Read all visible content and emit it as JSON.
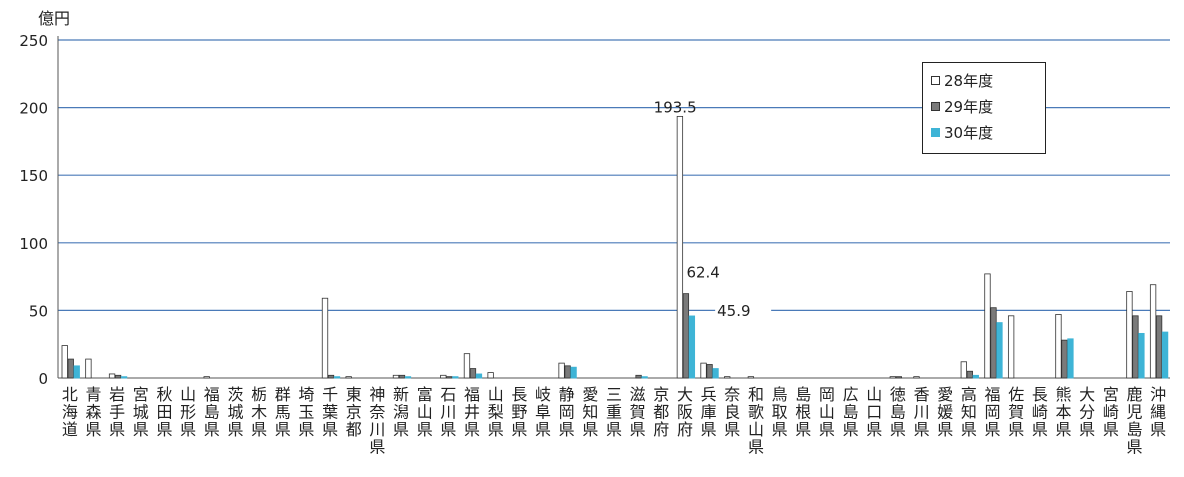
{
  "chart_data": {
    "type": "bar",
    "unit_label": "億円",
    "ylim": [
      0,
      250
    ],
    "yticks": [
      0,
      50,
      100,
      150,
      200,
      250
    ],
    "grid": true,
    "legend_position": "top-right",
    "categories": [
      "北海道",
      "青森県",
      "岩手県",
      "宮城県",
      "秋田県",
      "山形県",
      "福島県",
      "茨城県",
      "栃木県",
      "群馬県",
      "埼玉県",
      "千葉県",
      "東京都",
      "神奈川県",
      "新潟県",
      "富山県",
      "石川県",
      "福井県",
      "山梨県",
      "長野県",
      "岐阜県",
      "静岡県",
      "愛知県",
      "三重県",
      "滋賀県",
      "京都府",
      "大阪府",
      "兵庫県",
      "奈良県",
      "和歌山県",
      "鳥取県",
      "島根県",
      "岡山県",
      "広島県",
      "山口県",
      "徳島県",
      "香川県",
      "愛媛県",
      "高知県",
      "福岡県",
      "佐賀県",
      "長崎県",
      "熊本県",
      "大分県",
      "宮崎県",
      "鹿児島県",
      "沖縄県"
    ],
    "series": [
      {
        "name": "28年度",
        "color": "#ffffff",
        "stroke": "#333333",
        "values": [
          24,
          14,
          3,
          0,
          0,
          0,
          1,
          0,
          0,
          0,
          0,
          59,
          1,
          0,
          2,
          0,
          2,
          18,
          4,
          0,
          0,
          11,
          0,
          0,
          0,
          0,
          193.5,
          11,
          1,
          1,
          0,
          0,
          0,
          0,
          0,
          1,
          1,
          0,
          12,
          77,
          46,
          0,
          47,
          0,
          0,
          64,
          69
        ]
      },
      {
        "name": "29年度",
        "color": "#7a7a7a",
        "stroke": "#333333",
        "values": [
          14,
          0,
          2,
          0,
          0,
          0,
          0,
          0,
          0,
          0,
          0,
          2,
          0,
          0,
          2,
          0,
          1,
          7,
          0,
          0,
          0,
          9,
          0,
          0,
          2,
          0,
          62.4,
          10,
          0,
          0,
          0,
          0,
          0,
          0,
          0,
          1,
          0,
          0,
          5,
          52,
          0,
          0,
          28,
          0,
          0,
          46,
          46
        ]
      },
      {
        "name": "30年度",
        "color": "#3eb4d6",
        "stroke": "#3eb4d6",
        "values": [
          9,
          0,
          1,
          0,
          0,
          0,
          0,
          0,
          0,
          0,
          0,
          1,
          0,
          0,
          1,
          0,
          1,
          3,
          0,
          0,
          0,
          8,
          0,
          0,
          1,
          0,
          45.9,
          7,
          0,
          0,
          0,
          0,
          0,
          0,
          0,
          0,
          0,
          0,
          2,
          41,
          0,
          0,
          29,
          0,
          0,
          33,
          34
        ]
      }
    ],
    "data_labels": [
      {
        "category": "大阪府",
        "series": "28年度",
        "text": "193.5"
      },
      {
        "category": "大阪府",
        "series": "29年度",
        "text": "62.4"
      },
      {
        "category": "大阪府",
        "series": "30年度",
        "text": "45.9"
      }
    ]
  }
}
